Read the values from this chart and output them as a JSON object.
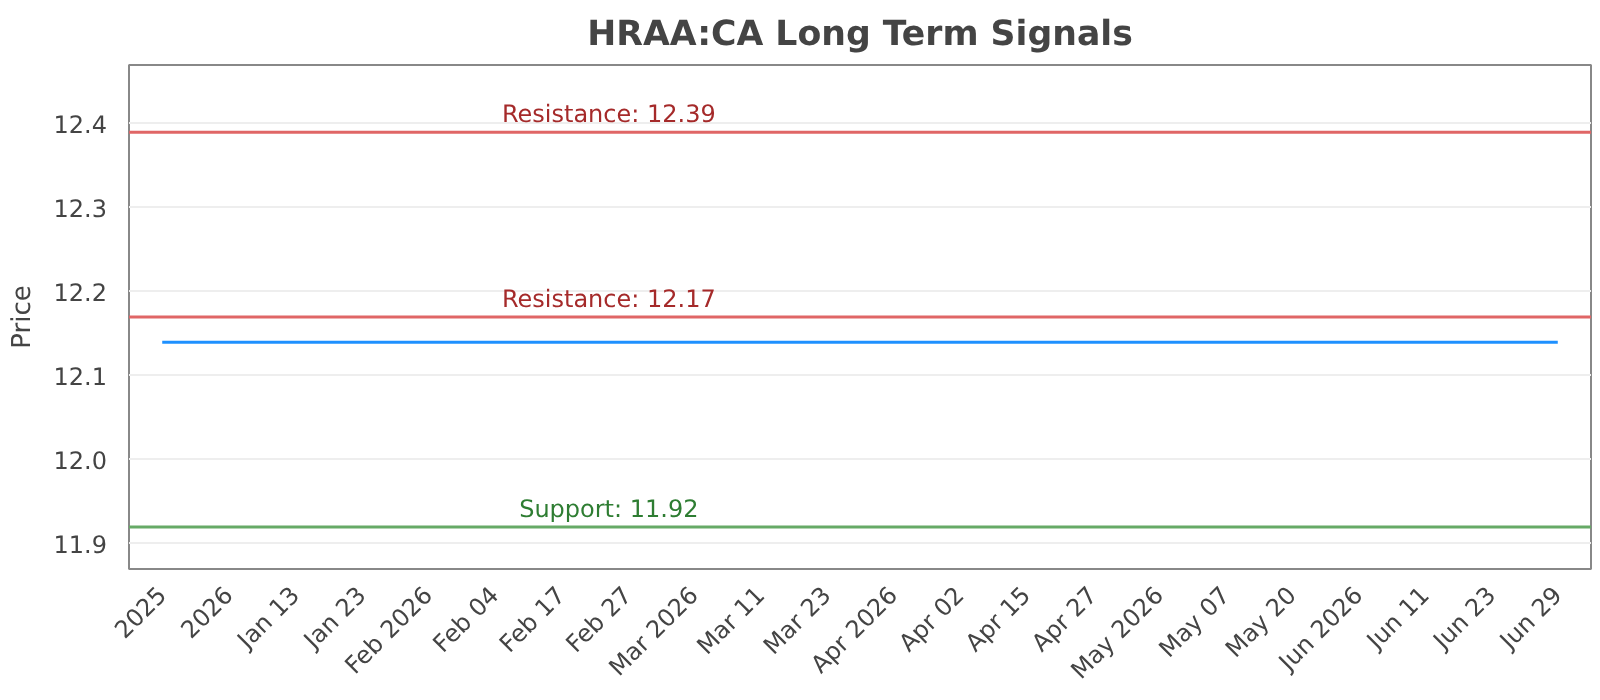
{
  "chart_data": {
    "type": "line",
    "title": "HRAA:CA Long Term Signals",
    "ylabel": "Price",
    "categories": [
      "2025",
      "2026",
      "Jan 13",
      "Jan 23",
      "Feb 2026",
      "Feb 04",
      "Feb 17",
      "Feb 27",
      "Mar 2026",
      "Mar 11",
      "Mar 23",
      "Apr 2026",
      "Apr 02",
      "Apr 15",
      "Apr 27",
      "May 2026",
      "May 07",
      "May 20",
      "Jun 2026",
      "Jun 11",
      "Jun 23",
      "Jun 29"
    ],
    "series": [
      {
        "color": "#1e90ff",
        "values": [
          12.14,
          12.14,
          12.14,
          12.14,
          12.14,
          12.14,
          12.14,
          12.14,
          12.14,
          12.14,
          12.14,
          12.14,
          12.14,
          12.14,
          12.14,
          12.14,
          12.14,
          12.14,
          12.14,
          12.14,
          12.14,
          12.14
        ]
      }
    ],
    "ylim": [
      11.87,
      12.47
    ],
    "yticks": [
      11.9,
      {
        "value": 12,
        "label": "12.0"
      },
      12.1,
      12.2,
      12.3,
      12.4
    ],
    "grid": "y",
    "marker": "none",
    "line_style": "solid",
    "ref_lines": [
      {
        "axis": "y",
        "value": 12.39,
        "label": "Resistance: 12.39",
        "color": "#e06666"
      },
      {
        "axis": "y",
        "value": 12.17,
        "label": "Resistance: 12.17",
        "color": "#e06666"
      },
      {
        "axis": "y",
        "value": 11.92,
        "label": "Support: 11.92",
        "color": "#66aa66"
      }
    ]
  }
}
